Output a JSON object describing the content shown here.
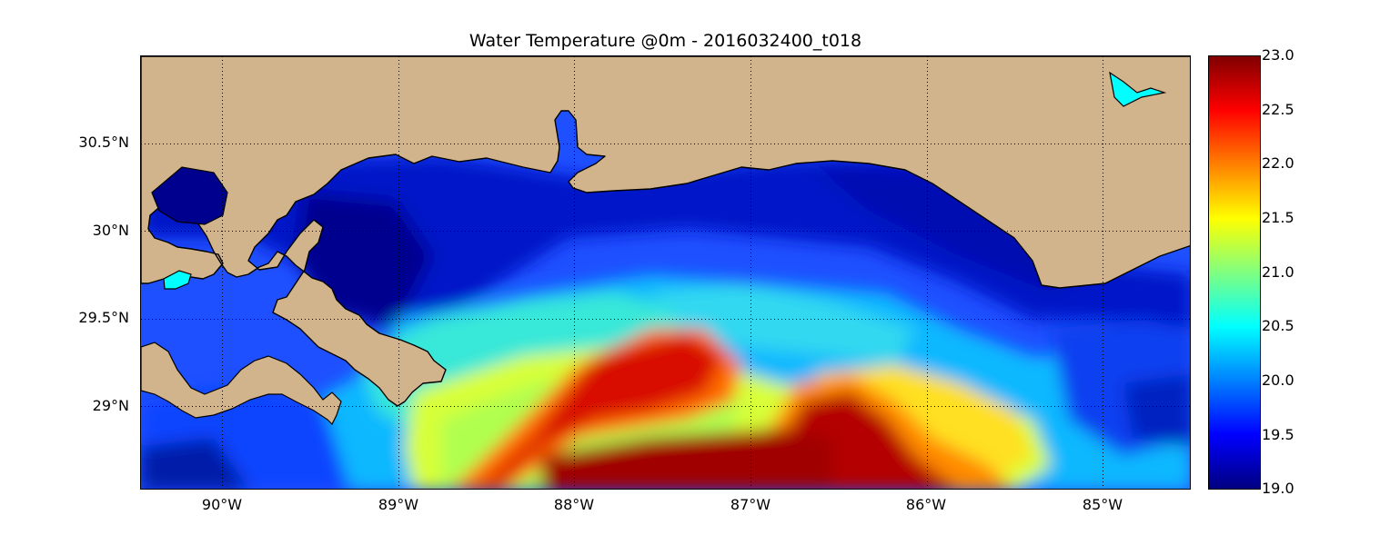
{
  "title": "Water Temperature @0m - 2016032400_t018",
  "colors": {
    "land": "#d2b48c",
    "coast": "#000000",
    "grid": "#000000"
  },
  "map": {
    "lon_range": [
      -90.5,
      -84.5
    ],
    "lat_range": [
      28.55,
      31.0
    ],
    "lat_labels": [
      "30.5°N",
      "30°N",
      "29.5°N",
      "29°N"
    ],
    "lon_labels": [
      "90°W",
      "89°W",
      "88°W",
      "87°W",
      "86°W",
      "85°W"
    ],
    "grid": "dotted"
  },
  "colorbar": {
    "min": 19.0,
    "max": 23.0,
    "colormap": "jet",
    "ticks": [
      "23.0",
      "22.5",
      "22.0",
      "21.5",
      "21.0",
      "20.5",
      "20.0",
      "19.5",
      "19.0"
    ]
  }
}
